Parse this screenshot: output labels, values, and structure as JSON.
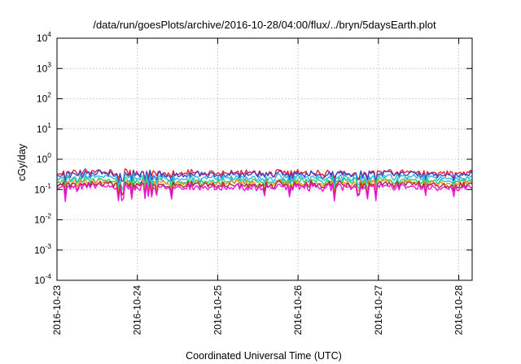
{
  "chart_data": {
    "type": "line",
    "title": "/data/run/goesPlots/archive/2016-10-28/04:00/flux/../bryn/5daysEarth.plot",
    "xlabel": "Coordinated Universal Time (UTC)",
    "ylabel": "cGy/day",
    "y_scale": "log",
    "ylim": [
      "1e-4",
      "1e4"
    ],
    "y_ticks": [
      {
        "base": "10",
        "exp": "-4",
        "value": 0.0001
      },
      {
        "base": "10",
        "exp": "-3",
        "value": 0.001
      },
      {
        "base": "10",
        "exp": "-2",
        "value": 0.01
      },
      {
        "base": "10",
        "exp": "-1",
        "value": 0.1
      },
      {
        "base": "10",
        "exp": "0",
        "value": 1
      },
      {
        "base": "10",
        "exp": "1",
        "value": 10
      },
      {
        "base": "10",
        "exp": "2",
        "value": 100
      },
      {
        "base": "10",
        "exp": "3",
        "value": 1000
      },
      {
        "base": "10",
        "exp": "4",
        "value": 10000
      }
    ],
    "x_ticks": [
      "2016-10-23",
      "2016-10-24",
      "2016-10-25",
      "2016-10-26",
      "2016-10-27",
      "2016-10-28"
    ],
    "xlim": [
      "2016-10-23 00:00",
      "2016-10-28 04:00"
    ],
    "grid": true,
    "series": [
      {
        "color": "#e8212f",
        "base_value": 0.36,
        "typical_range": [
          0.28,
          0.42
        ]
      },
      {
        "color": "#3f45c9",
        "base_value": 0.32,
        "typical_range": [
          0.22,
          0.38
        ]
      },
      {
        "color": "#2eb6e0",
        "base_value": 0.25,
        "typical_range": [
          0.18,
          0.3
        ]
      },
      {
        "color": "#1ecf8c",
        "base_value": 0.195,
        "typical_range": [
          0.15,
          0.23
        ]
      },
      {
        "color": "#f2941c",
        "base_value": 0.165,
        "typical_range": [
          0.13,
          0.19
        ]
      },
      {
        "color": "#a0303c",
        "base_value": 0.145,
        "typical_range": [
          0.11,
          0.17
        ]
      },
      {
        "color": "#ee16d5",
        "base_value": 0.12,
        "typical_range": [
          0.06,
          0.14
        ]
      }
    ]
  }
}
